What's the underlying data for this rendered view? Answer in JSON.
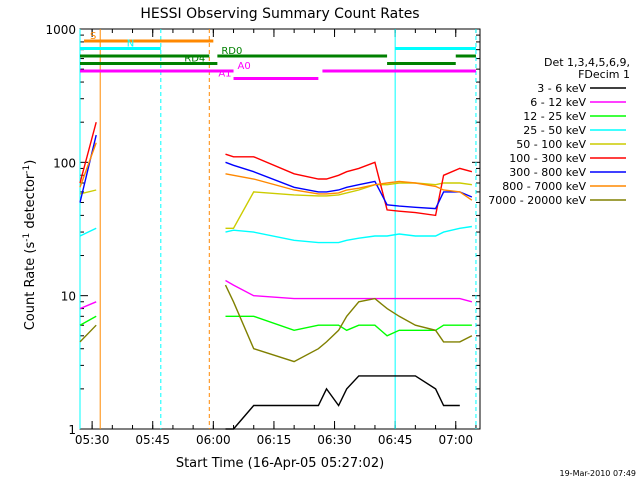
{
  "chart_data": {
    "type": "line",
    "title": "HESSI Observing Summary Count Rates",
    "xlabel": "Start Time (16-Apr-05 05:27:02)",
    "ylabel": {
      "main": "Count Rate (s",
      "sup1": "-1",
      "mid": " detector",
      "sup2": "-1",
      "end": ")"
    },
    "footer": "19-Mar-2010 07:49",
    "yscale": "log",
    "xlim": [
      "05:27",
      "07:06"
    ],
    "ylim": [
      1,
      1000
    ],
    "x_ticks": [
      "05:30",
      "05:45",
      "06:00",
      "06:15",
      "06:30",
      "06:45",
      "07:00"
    ],
    "y_ticks": [
      "1",
      "10",
      "100",
      "1000"
    ],
    "legend_header": [
      "Det 1,3,4,5,6,9,",
      "FDecim 1"
    ],
    "legend_placement": "right",
    "series": [
      {
        "name": "3 - 6 keV",
        "color": "#000000",
        "x": [
          "05:27",
          "05:31",
          "05:32",
          "05:33",
          "05:58",
          "06:00",
          "06:03",
          "06:05",
          "06:10",
          "06:20",
          "06:26",
          "06:28",
          "06:31",
          "06:33",
          "06:36",
          "06:40",
          "06:43",
          "06:46",
          "06:50",
          "06:55",
          "06:57",
          "07:01",
          "07:04"
        ],
        "y": [
          null,
          null,
          null,
          null,
          null,
          null,
          1,
          1,
          1.5,
          1.5,
          1.5,
          2,
          1.5,
          2,
          2.5,
          2.5,
          2.5,
          2.5,
          2.5,
          2,
          1.5,
          1.5,
          null
        ]
      },
      {
        "name": "6 - 12 keV",
        "color": "#ff00ff",
        "x": [
          "05:27",
          "05:31",
          "05:32",
          "05:33",
          "05:58",
          "06:00",
          "06:03",
          "06:05",
          "06:10",
          "06:20",
          "06:26",
          "06:28",
          "06:31",
          "06:33",
          "06:36",
          "06:40",
          "06:43",
          "06:46",
          "06:50",
          "06:55",
          "06:57",
          "07:01",
          "07:04"
        ],
        "y": [
          8,
          9,
          null,
          null,
          null,
          null,
          13,
          12,
          10,
          9.5,
          9.5,
          9.5,
          9.5,
          9.5,
          9.5,
          9.5,
          9.5,
          9.5,
          9.5,
          9.5,
          9.5,
          9.5,
          9
        ]
      },
      {
        "name": "12 - 25 keV",
        "color": "#00ff00",
        "x": [
          "05:27",
          "05:31",
          "05:32",
          "05:33",
          "05:58",
          "06:00",
          "06:03",
          "06:05",
          "06:10",
          "06:20",
          "06:26",
          "06:28",
          "06:31",
          "06:33",
          "06:36",
          "06:40",
          "06:43",
          "06:46",
          "06:50",
          "06:55",
          "06:57",
          "07:01",
          "07:04"
        ],
        "y": [
          6,
          7,
          null,
          null,
          null,
          null,
          7,
          7,
          7,
          5.5,
          6,
          6,
          6,
          5.5,
          6,
          6,
          5,
          5.5,
          5.5,
          5.5,
          6,
          6,
          6
        ]
      },
      {
        "name": "25 - 50 keV",
        "color": "#00ffff",
        "x": [
          "05:27",
          "05:31",
          "05:32",
          "05:33",
          "05:58",
          "06:00",
          "06:03",
          "06:05",
          "06:10",
          "06:20",
          "06:26",
          "06:28",
          "06:31",
          "06:33",
          "06:36",
          "06:40",
          "06:43",
          "06:46",
          "06:50",
          "06:55",
          "06:57",
          "07:01",
          "07:04"
        ],
        "y": [
          28,
          32,
          null,
          null,
          null,
          null,
          30,
          31,
          30,
          26,
          25,
          25,
          25,
          26,
          27,
          28,
          28,
          29,
          28,
          28,
          30,
          32,
          33
        ]
      },
      {
        "name": "50 - 100 keV",
        "color": "#cccc00",
        "x": [
          "05:27",
          "05:31",
          "05:32",
          "05:33",
          "05:58",
          "06:00",
          "06:03",
          "06:05",
          "06:10",
          "06:20",
          "06:26",
          "06:28",
          "06:31",
          "06:33",
          "06:36",
          "06:40",
          "06:43",
          "06:46",
          "06:50",
          "06:55",
          "06:57",
          "07:01",
          "07:04"
        ],
        "y": [
          58,
          62,
          null,
          null,
          null,
          null,
          32,
          32,
          60,
          57,
          56,
          56,
          57,
          59,
          62,
          68,
          68,
          70,
          70,
          68,
          70,
          70,
          68
        ]
      },
      {
        "name": "100 - 300 keV",
        "color": "#ff0000",
        "x": [
          "05:27",
          "05:31",
          "05:32",
          "05:33",
          "05:58",
          "06:00",
          "06:03",
          "06:05",
          "06:10",
          "06:20",
          "06:26",
          "06:28",
          "06:31",
          "06:33",
          "06:36",
          "06:40",
          "06:43",
          "06:46",
          "06:50",
          "06:55",
          "06:57",
          "07:01",
          "07:04"
        ],
        "y": [
          70,
          200,
          null,
          null,
          null,
          null,
          115,
          110,
          110,
          82,
          75,
          75,
          80,
          85,
          90,
          100,
          44,
          43,
          42,
          40,
          80,
          90,
          85
        ]
      },
      {
        "name": "300 - 800 keV",
        "color": "#0000ff",
        "x": [
          "05:27",
          "05:31",
          "05:32",
          "05:33",
          "05:58",
          "06:00",
          "06:03",
          "06:05",
          "06:10",
          "06:20",
          "06:26",
          "06:28",
          "06:31",
          "06:33",
          "06:36",
          "06:40",
          "06:43",
          "06:46",
          "06:50",
          "06:55",
          "06:57",
          "07:01",
          "07:04"
        ],
        "y": [
          50,
          160,
          null,
          null,
          null,
          null,
          100,
          95,
          85,
          65,
          60,
          60,
          62,
          65,
          68,
          72,
          48,
          47,
          46,
          45,
          60,
          60,
          55
        ]
      },
      {
        "name": "800 - 7000 keV",
        "color": "#ff8800",
        "x": [
          "05:27",
          "05:31",
          "05:32",
          "05:33",
          "05:58",
          "06:00",
          "06:03",
          "06:05",
          "06:10",
          "06:20",
          "06:26",
          "06:28",
          "06:31",
          "06:33",
          "06:36",
          "06:40",
          "06:43",
          "06:46",
          "06:50",
          "06:55",
          "06:57",
          "07:01",
          "07:04"
        ],
        "y": [
          65,
          140,
          null,
          null,
          null,
          null,
          82,
          80,
          75,
          62,
          58,
          58,
          59,
          62,
          64,
          68,
          70,
          72,
          70,
          66,
          62,
          60,
          52
        ]
      },
      {
        "name": "7000 - 20000 keV",
        "color": "#808000",
        "x": [
          "05:27",
          "05:31",
          "05:32",
          "05:33",
          "05:58",
          "06:00",
          "06:03",
          "06:05",
          "06:10",
          "06:20",
          "06:26",
          "06:28",
          "06:31",
          "06:33",
          "06:36",
          "06:40",
          "06:43",
          "06:46",
          "06:50",
          "06:55",
          "06:57",
          "07:01",
          "07:04"
        ],
        "y": [
          4.5,
          6,
          null,
          null,
          null,
          null,
          12,
          9,
          4,
          3.2,
          4,
          4.5,
          5.5,
          7,
          9,
          9.5,
          8,
          7,
          6,
          5.5,
          4.5,
          4.5,
          5
        ]
      }
    ],
    "state_bars": [
      {
        "label": "S",
        "color": "#ff8800",
        "level": 1,
        "segments": [
          [
            "05:28",
            "06:00"
          ]
        ]
      },
      {
        "label": "N",
        "color": "#00ffff",
        "level": 2,
        "segments": [
          [
            "05:27",
            "05:47"
          ],
          [
            "06:45",
            "07:05"
          ]
        ]
      },
      {
        "label": "RD0",
        "color": "#008000",
        "level": 3,
        "segments": [
          [
            "05:27",
            "05:59"
          ],
          [
            "06:01",
            "06:43"
          ],
          [
            "07:00",
            "07:05"
          ]
        ]
      },
      {
        "label": "RD4",
        "color": "#008000",
        "level": 4,
        "segments": [
          [
            "05:27",
            "06:01"
          ],
          [
            "06:43",
            "07:00"
          ]
        ]
      },
      {
        "label": "A0",
        "color": "#ff00ff",
        "level": 5,
        "segments": [
          [
            "05:27",
            "06:05"
          ],
          [
            "06:27",
            "07:05"
          ]
        ]
      },
      {
        "label": "A1",
        "color": "#ff00ff",
        "level": 6,
        "segments": [
          [
            "06:05",
            "06:26"
          ]
        ]
      }
    ],
    "vlines": [
      {
        "x": "05:27",
        "color": "#00ffff",
        "style": "solid"
      },
      {
        "x": "05:32",
        "color": "#ff8800",
        "style": "solid"
      },
      {
        "x": "05:47",
        "color": "#00ffff",
        "style": "dashed"
      },
      {
        "x": "05:59",
        "color": "#ff8800",
        "style": "dashed"
      },
      {
        "x": "06:45",
        "color": "#00ffff",
        "style": "solid"
      },
      {
        "x": "07:05",
        "color": "#00ffff",
        "style": "dashed"
      }
    ]
  }
}
